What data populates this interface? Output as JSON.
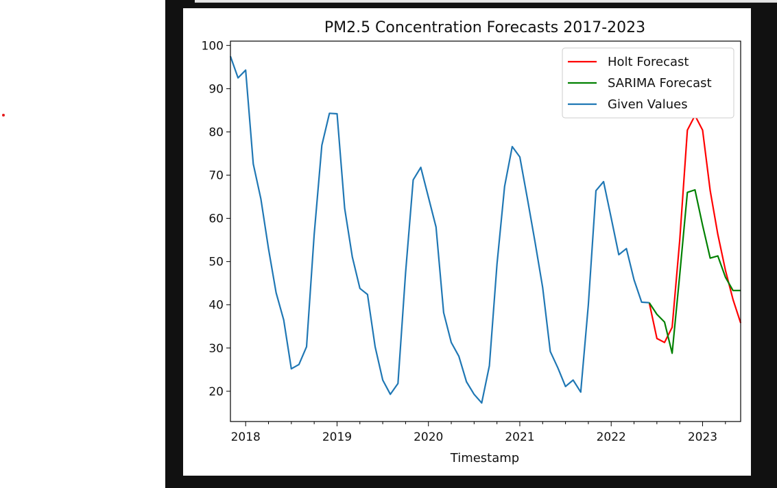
{
  "page": {
    "marker_color": "#e41a1c",
    "frame_color": "#111111"
  },
  "chart_data": {
    "type": "line",
    "title": "PM2.5 Concentration Forecasts 2017-2023",
    "xlabel": "Timestamp",
    "ylabel": "",
    "xlim": [
      "2017-11",
      "2023-06"
    ],
    "ylim": [
      13,
      101
    ],
    "x_ticks": [
      "2018",
      "2019",
      "2020",
      "2021",
      "2022",
      "2023"
    ],
    "y_ticks": [
      20,
      30,
      40,
      50,
      60,
      70,
      80,
      90,
      100
    ],
    "grid": false,
    "legend_position": "top-right",
    "series": [
      {
        "name": "Holt Forecast",
        "color": "#ff0000",
        "points": [
          [
            "2022-06",
            40.5
          ],
          [
            "2022-07",
            32.2
          ],
          [
            "2022-08",
            31.3
          ],
          [
            "2022-09",
            34.8
          ],
          [
            "2022-10",
            55.0
          ],
          [
            "2022-11",
            80.4
          ],
          [
            "2022-12",
            83.8
          ],
          [
            "2023-01",
            80.4
          ],
          [
            "2023-02",
            66.4
          ],
          [
            "2023-03",
            56.3
          ],
          [
            "2023-04",
            48.0
          ],
          [
            "2023-05",
            41.2
          ],
          [
            "2023-06",
            35.8
          ]
        ]
      },
      {
        "name": "SARIMA Forecast",
        "color": "#008000",
        "points": [
          [
            "2022-06",
            40.5
          ],
          [
            "2022-07",
            37.8
          ],
          [
            "2022-08",
            36.0
          ],
          [
            "2022-09",
            28.8
          ],
          [
            "2022-10",
            47.0
          ],
          [
            "2022-11",
            66.0
          ],
          [
            "2022-12",
            66.6
          ],
          [
            "2023-01",
            58.4
          ],
          [
            "2023-02",
            50.8
          ],
          [
            "2023-03",
            51.3
          ],
          [
            "2023-04",
            46.4
          ],
          [
            "2023-05",
            43.3
          ],
          [
            "2023-06",
            43.3
          ]
        ]
      },
      {
        "name": "Given Values",
        "color": "#1f77b4",
        "points": [
          [
            "2017-11",
            97.5
          ],
          [
            "2017-12",
            92.5
          ],
          [
            "2018-01",
            94.3
          ],
          [
            "2018-02",
            72.6
          ],
          [
            "2018-03",
            64.5
          ],
          [
            "2018-04",
            53.0
          ],
          [
            "2018-05",
            42.8
          ],
          [
            "2018-06",
            36.5
          ],
          [
            "2018-07",
            25.2
          ],
          [
            "2018-08",
            26.2
          ],
          [
            "2018-09",
            30.3
          ],
          [
            "2018-10",
            56.2
          ],
          [
            "2018-11",
            76.9
          ],
          [
            "2018-12",
            84.3
          ],
          [
            "2019-01",
            84.2
          ],
          [
            "2019-02",
            62.3
          ],
          [
            "2019-03",
            51.1
          ],
          [
            "2019-04",
            43.8
          ],
          [
            "2019-05",
            42.4
          ],
          [
            "2019-06",
            30.3
          ],
          [
            "2019-07",
            22.6
          ],
          [
            "2019-08",
            19.3
          ],
          [
            "2019-09",
            21.8
          ],
          [
            "2019-10",
            47.4
          ],
          [
            "2019-11",
            68.9
          ],
          [
            "2019-12",
            71.8
          ],
          [
            "2020-01",
            64.9
          ],
          [
            "2020-02",
            58.0
          ],
          [
            "2020-03",
            38.2
          ],
          [
            "2020-04",
            31.3
          ],
          [
            "2020-05",
            28.1
          ],
          [
            "2020-06",
            22.2
          ],
          [
            "2020-07",
            19.3
          ],
          [
            "2020-08",
            17.3
          ],
          [
            "2020-09",
            25.9
          ],
          [
            "2020-10",
            49.4
          ],
          [
            "2020-11",
            67.4
          ],
          [
            "2020-12",
            76.6
          ],
          [
            "2021-01",
            74.2
          ],
          [
            "2021-02",
            64.5
          ],
          [
            "2021-03",
            54.5
          ],
          [
            "2021-04",
            44.0
          ],
          [
            "2021-05",
            29.2
          ],
          [
            "2021-06",
            25.4
          ],
          [
            "2021-07",
            21.1
          ],
          [
            "2021-08",
            22.6
          ],
          [
            "2021-09",
            19.8
          ],
          [
            "2021-10",
            40.0
          ],
          [
            "2021-11",
            66.4
          ],
          [
            "2021-12",
            68.5
          ],
          [
            "2022-01",
            60.1
          ],
          [
            "2022-02",
            51.6
          ],
          [
            "2022-03",
            53.0
          ],
          [
            "2022-04",
            45.8
          ],
          [
            "2022-05",
            40.6
          ],
          [
            "2022-06",
            40.5
          ]
        ]
      }
    ]
  }
}
